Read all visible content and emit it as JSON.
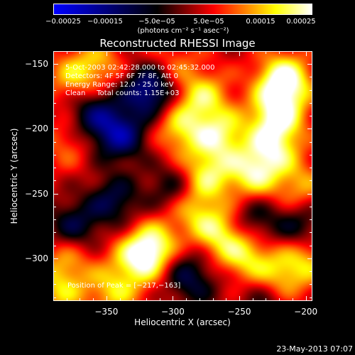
{
  "chart_data": {
    "type": "heatmap",
    "title": "Reconstructed RHESSI Image",
    "xlabel": "Heliocentric X (arcsec)",
    "ylabel": "Heliocentric Y (arcsec)",
    "xlim": [
      -390,
      -195
    ],
    "ylim": [
      -333,
      -140
    ],
    "xticks": [
      -350,
      -300,
      -250,
      -200
    ],
    "xtick_labels": [
      "−350",
      "−300",
      "−250",
      "−200"
    ],
    "yticks": [
      -150,
      -200,
      -250,
      -300
    ],
    "ytick_labels": [
      "−150",
      "−200",
      "−250",
      "−300"
    ],
    "colorbar": {
      "min": -0.00025,
      "max": 0.00025,
      "tick_values": [
        -0.00025,
        -0.00015,
        -5e-05,
        5e-05,
        0.00015,
        0.00025
      ],
      "tick_labels": [
        "−0.00025",
        "−0.00015",
        "−5.0e−05",
        "5.0e−05",
        "0.00015",
        "0.00025"
      ],
      "unit": "(photons cm⁻² s⁻¹ asec⁻²)",
      "colors": [
        "#0000ff",
        "#000000",
        "#ff0000",
        "#ffff00",
        "#ffffff"
      ]
    },
    "info_lines": [
      "5-Oct-2003 02:42:28.000 to 02:45:32.000",
      "Detectors: 4F 5F 6F 7F 8F, Att 0",
      "Energy Range: 12.0 - 25.0 keV",
      "Clean     Total counts: 1.15E+03"
    ],
    "peak_label": "Position of Peak = [−217,−163]",
    "peak_position": [
      -217,
      -163
    ],
    "sources": [
      {
        "x": -217,
        "y": -163,
        "value": 0.00025
      },
      {
        "x": -222,
        "y": -190,
        "value": 0.0002
      },
      {
        "x": -225,
        "y": -215,
        "value": 0.00016
      },
      {
        "x": -240,
        "y": -235,
        "value": 0.00017
      },
      {
        "x": -265,
        "y": -205,
        "value": 0.00017
      },
      {
        "x": -278,
        "y": -175,
        "value": 0.00015
      },
      {
        "x": -275,
        "y": -235,
        "value": 0.00016
      },
      {
        "x": -295,
        "y": -200,
        "value": 0.00014
      },
      {
        "x": -312,
        "y": -292,
        "value": 0.0002
      },
      {
        "x": -325,
        "y": -300,
        "value": 0.00017
      },
      {
        "x": -265,
        "y": -280,
        "value": 0.00016
      },
      {
        "x": -245,
        "y": -298,
        "value": 0.00015
      },
      {
        "x": -285,
        "y": -262,
        "value": 0.00012
      },
      {
        "x": -345,
        "y": -325,
        "value": 0.00013
      },
      {
        "x": -385,
        "y": -325,
        "value": 0.00012
      },
      {
        "x": -380,
        "y": -300,
        "value": 0.0001
      },
      {
        "x": -220,
        "y": -315,
        "value": 0.00014
      },
      {
        "x": -200,
        "y": -300,
        "value": 0.00012
      },
      {
        "x": -375,
        "y": -160,
        "value": 0.00012
      },
      {
        "x": -355,
        "y": -150,
        "value": 0.0001
      },
      {
        "x": -205,
        "y": -245,
        "value": 0.00011
      },
      {
        "x": -380,
        "y": -210,
        "value": 8e-05
      },
      {
        "x": -300,
        "y": -150,
        "value": 8e-05
      },
      {
        "x": -318,
        "y": -170,
        "value": -0.0002
      },
      {
        "x": -340,
        "y": -205,
        "value": -0.00018
      },
      {
        "x": -360,
        "y": -188,
        "value": -0.00013
      },
      {
        "x": -345,
        "y": -255,
        "value": -0.00012
      },
      {
        "x": -375,
        "y": -275,
        "value": -0.00012
      },
      {
        "x": -300,
        "y": -245,
        "value": -0.0001
      },
      {
        "x": -240,
        "y": -270,
        "value": -0.0001
      },
      {
        "x": -205,
        "y": -275,
        "value": -0.0001
      },
      {
        "x": -285,
        "y": -318,
        "value": -0.0001
      },
      {
        "x": -230,
        "y": -330,
        "value": -8e-05
      },
      {
        "x": -300,
        "y": -300,
        "value": -8e-05
      }
    ],
    "background_value": 4e-05
  },
  "timestamp": "23-May-2013 07:07"
}
